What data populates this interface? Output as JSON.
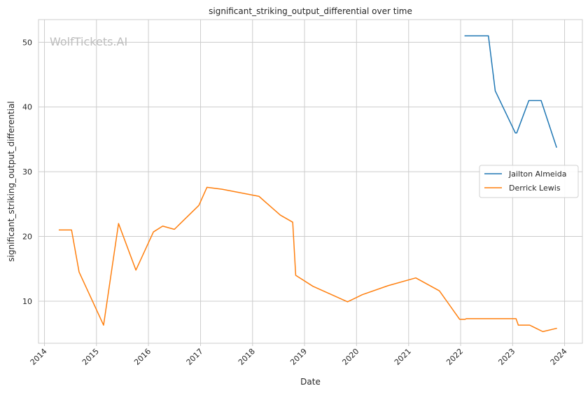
{
  "watermark": "WolfTickets.AI",
  "chart_data": {
    "type": "line",
    "title": "significant_striking_output_differential over time",
    "xlabel": "Date",
    "ylabel": "significant_striking_output_differential",
    "xlim": [
      "2013-11-20",
      "2024-05-05"
    ],
    "ylim": [
      3.5,
      53.5
    ],
    "x_ticks": [
      "2014",
      "2015",
      "2016",
      "2017",
      "2018",
      "2019",
      "2020",
      "2021",
      "2022",
      "2023",
      "2024"
    ],
    "y_ticks": [
      10,
      20,
      30,
      40,
      50
    ],
    "grid": true,
    "legend_position": "right",
    "series": [
      {
        "name": "Jailton Almeida",
        "color": "#1f77b4",
        "points": [
          [
            "2022-02-01",
            51.0
          ],
          [
            "2022-07-15",
            51.0
          ],
          [
            "2022-09-01",
            42.5
          ],
          [
            "2023-01-20",
            36.0
          ],
          [
            "2023-01-30",
            36.0
          ],
          [
            "2023-04-25",
            41.0
          ],
          [
            "2023-07-20",
            41.0
          ],
          [
            "2023-11-05",
            33.8
          ]
        ]
      },
      {
        "name": "Derrick Lewis",
        "color": "#ff7f0e",
        "points": [
          [
            "2014-04-15",
            21.0
          ],
          [
            "2014-07-10",
            21.0
          ],
          [
            "2014-09-01",
            14.5
          ],
          [
            "2015-02-20",
            6.3
          ],
          [
            "2015-06-05",
            22.0
          ],
          [
            "2015-10-05",
            14.8
          ],
          [
            "2016-02-05",
            20.7
          ],
          [
            "2016-04-10",
            21.6
          ],
          [
            "2016-07-01",
            21.1
          ],
          [
            "2016-12-20",
            24.8
          ],
          [
            "2017-02-15",
            27.6
          ],
          [
            "2017-06-01",
            27.3
          ],
          [
            "2018-02-15",
            26.2
          ],
          [
            "2018-07-15",
            23.3
          ],
          [
            "2018-10-10",
            22.2
          ],
          [
            "2018-10-31",
            14.0
          ],
          [
            "2019-03-01",
            12.3
          ],
          [
            "2019-10-30",
            9.9
          ],
          [
            "2020-02-10",
            11.0
          ],
          [
            "2020-08-10",
            12.4
          ],
          [
            "2021-02-20",
            13.6
          ],
          [
            "2021-08-05",
            11.6
          ],
          [
            "2021-12-25",
            7.2
          ],
          [
            "2022-02-01",
            7.2
          ],
          [
            "2022-02-10",
            7.3
          ],
          [
            "2022-08-01",
            7.3
          ],
          [
            "2023-01-25",
            7.3
          ],
          [
            "2023-02-10",
            6.3
          ],
          [
            "2023-05-01",
            6.3
          ],
          [
            "2023-08-01",
            5.3
          ],
          [
            "2023-11-05",
            5.8
          ]
        ]
      }
    ]
  }
}
